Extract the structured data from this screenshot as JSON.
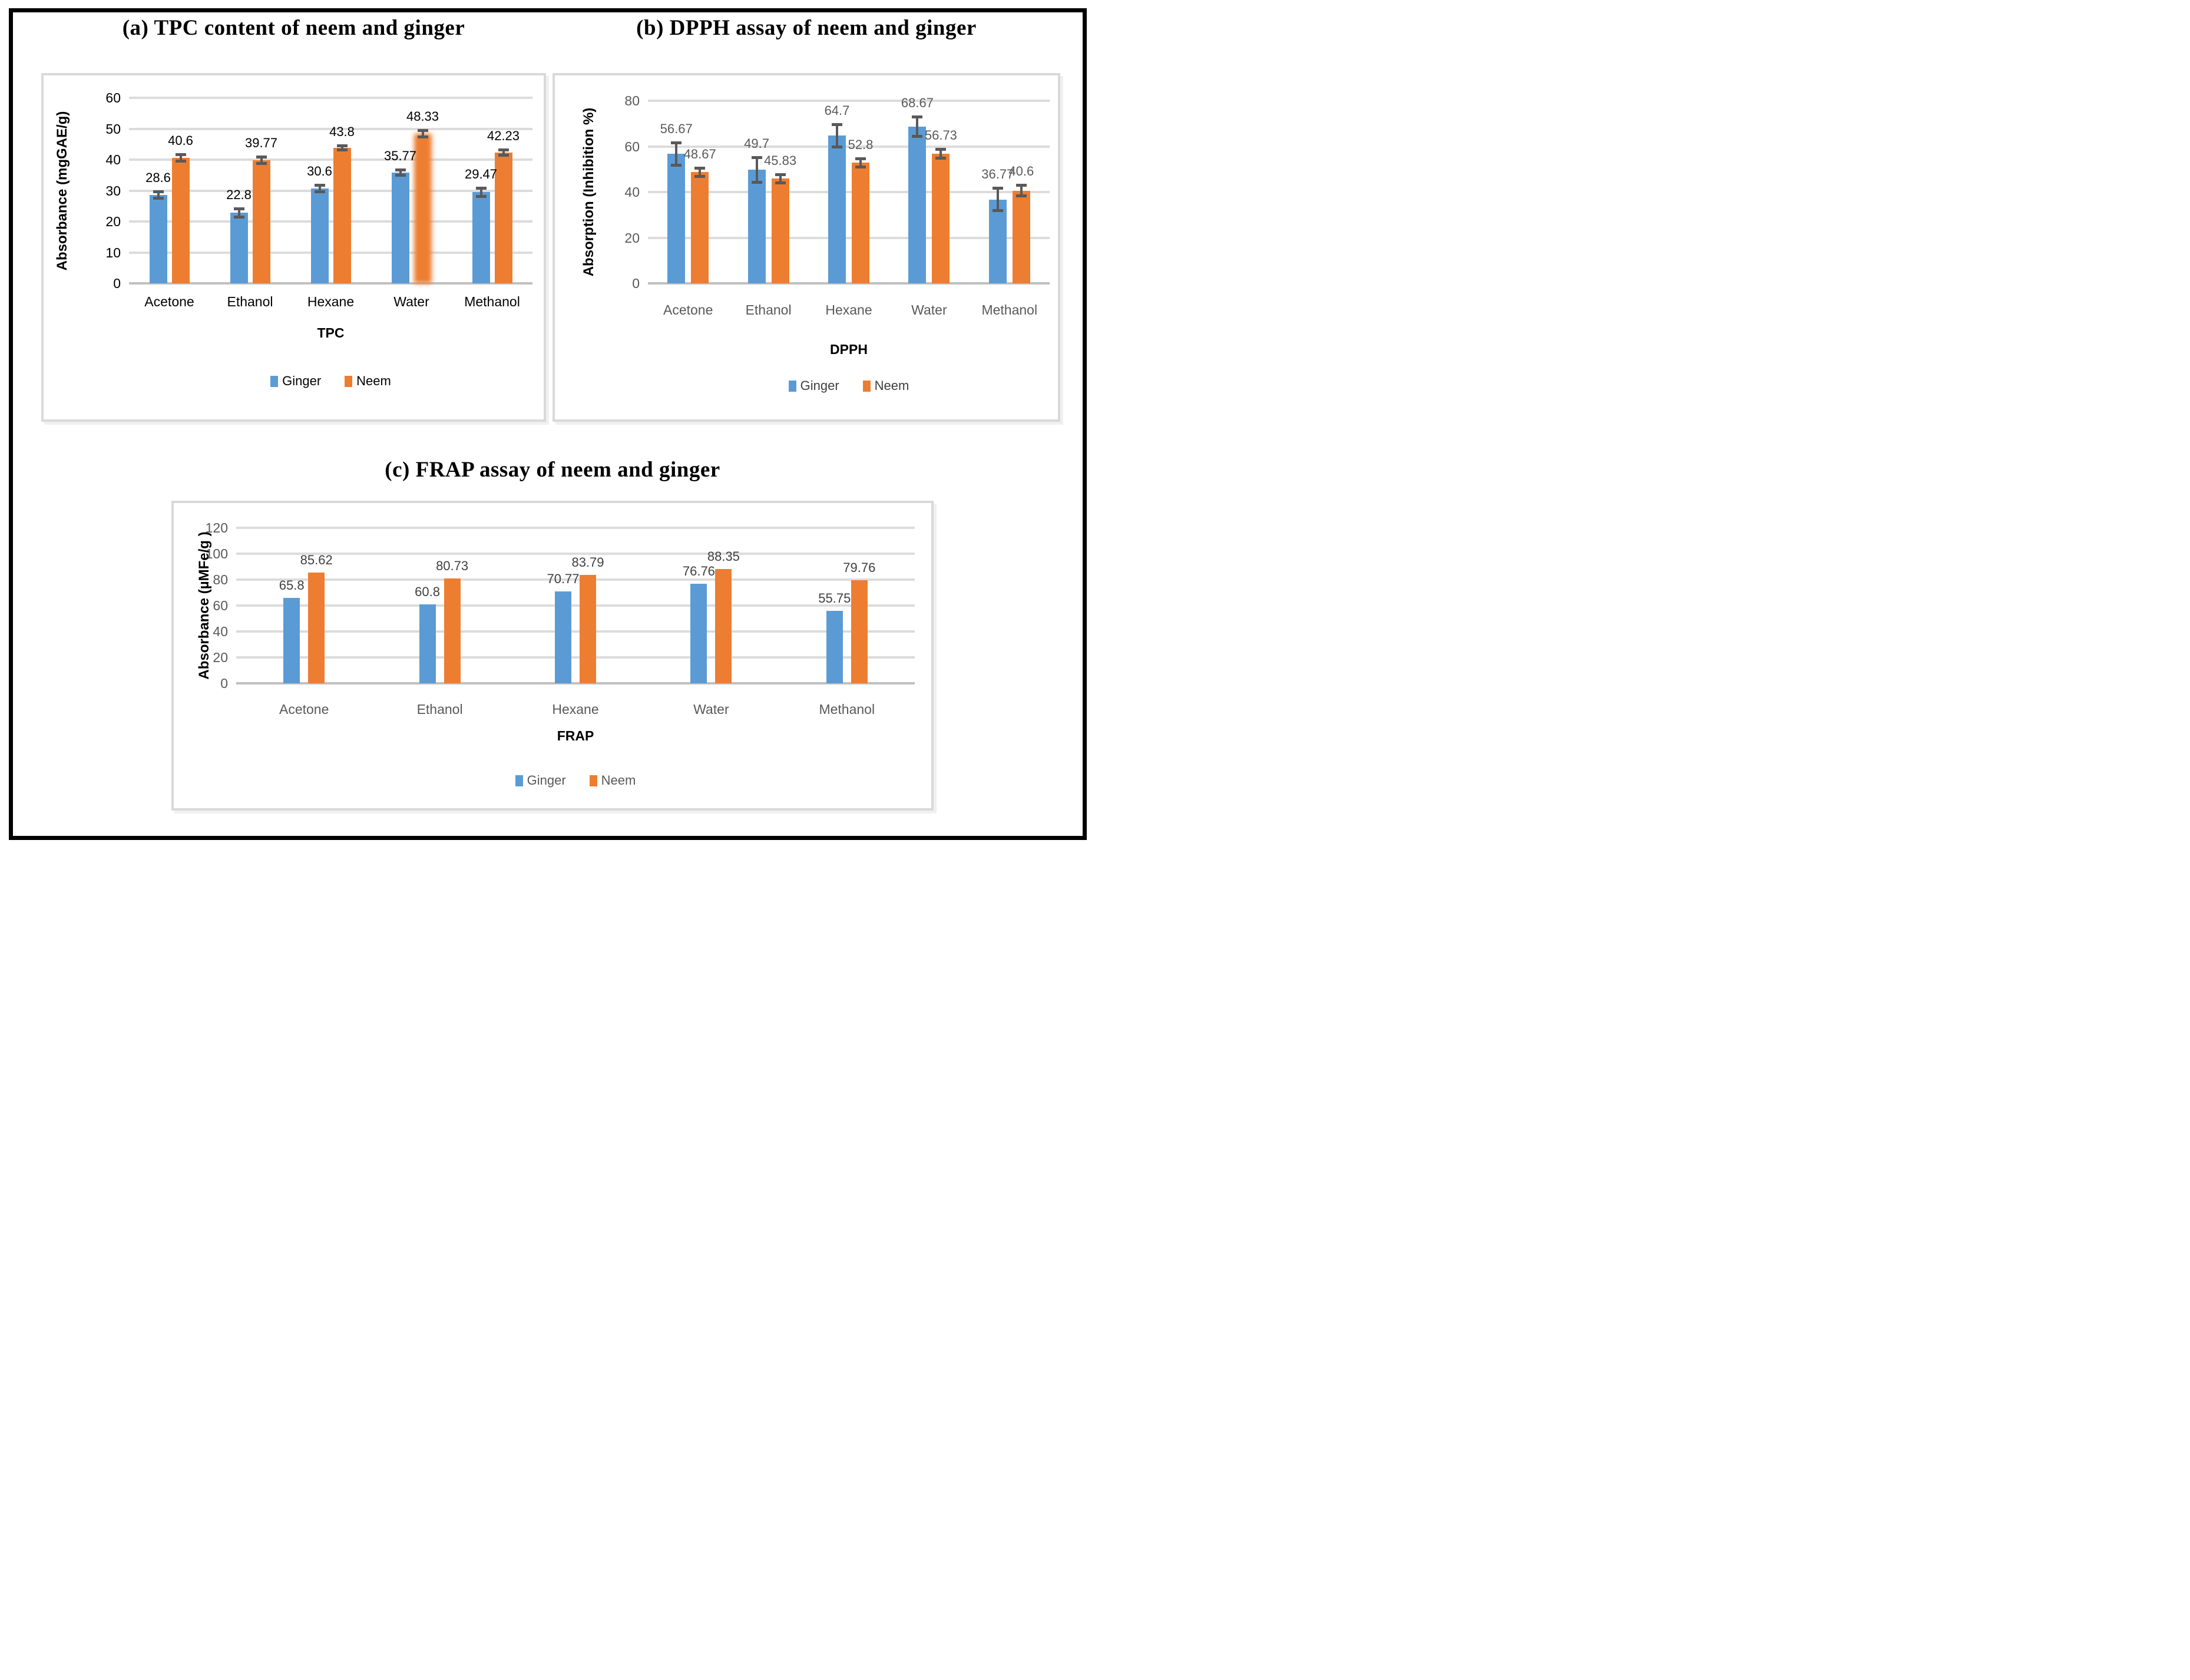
{
  "figure": {
    "border_color": "#000000",
    "background": "#ffffff"
  },
  "palette": {
    "ginger": "#5B9BD5",
    "neem": "#ED7D31",
    "error_bar": "#595959",
    "gridline": "#DCDCDC",
    "axis_line": "#C0C0C0",
    "panel_border": "#D9D9D9",
    "title_color": "#000000"
  },
  "chart_data": [
    {
      "id": "tpc",
      "type": "bar",
      "title": "(a) TPC content of neem and ginger",
      "xlabel": "TPC",
      "ylabel": "Absorbance (mgGAE/g)",
      "ylim": [
        0,
        60
      ],
      "yticks": [
        0,
        10,
        20,
        30,
        40,
        50,
        60
      ],
      "grid": true,
      "legend_position": "bottom",
      "categories": [
        "Acetone",
        "Ethanol",
        "Hexane",
        "Water",
        "Methanol"
      ],
      "series": [
        {
          "name": "Ginger",
          "color": "#5B9BD5",
          "values": [
            28.6,
            22.8,
            30.6,
            35.77,
            29.47
          ],
          "labels": [
            "28.6",
            "22.8",
            "30.6",
            "35.77",
            "29.47"
          ],
          "errors": [
            1.5,
            1.8,
            1.5,
            1.3,
            1.8
          ]
        },
        {
          "name": "Neem",
          "color": "#ED7D31",
          "values": [
            40.6,
            39.77,
            43.8,
            48.33,
            42.23
          ],
          "labels": [
            "40.6",
            "39.77",
            "43.8",
            "48.33",
            "42.23"
          ],
          "errors": [
            1.5,
            1.5,
            1.2,
            1.5,
            1.3
          ]
        }
      ],
      "blurred_bar": {
        "category": "Water",
        "series": "Neem"
      },
      "text_colors": {
        "tick": "#000000",
        "category": "#000000",
        "datalabel": "#000000",
        "legend": "#000000"
      }
    },
    {
      "id": "dpph",
      "type": "bar",
      "title": "(b) DPPH assay of neem and ginger",
      "xlabel": "DPPH",
      "ylabel": "Absorption (Inhibition %)",
      "ylim": [
        0,
        80
      ],
      "yticks": [
        0,
        20,
        40,
        60,
        80
      ],
      "grid": true,
      "legend_position": "bottom",
      "categories": [
        "Acetone",
        "Ethanol",
        "Hexane",
        "Water",
        "Methanol"
      ],
      "series": [
        {
          "name": "Ginger",
          "color": "#5B9BD5",
          "values": [
            56.67,
            49.7,
            64.7,
            68.67,
            36.77
          ],
          "labels": [
            "56.67",
            "49.7",
            "64.7",
            "68.67",
            "36.77"
          ],
          "errors": [
            5.5,
            6,
            5.5,
            5,
            5.5
          ]
        },
        {
          "name": "Neem",
          "color": "#ED7D31",
          "values": [
            48.67,
            45.83,
            52.8,
            56.73,
            40.6
          ],
          "labels": [
            "48.67",
            "45.83",
            "52.8",
            "56.73",
            "40.6"
          ],
          "errors": [
            2.5,
            2.5,
            2.5,
            2.5,
            3
          ]
        }
      ],
      "text_colors": {
        "tick": "#595959",
        "category": "#595959",
        "datalabel": "#595959",
        "legend": "#404040"
      }
    },
    {
      "id": "frap",
      "type": "bar",
      "title": "(c) FRAP assay of neem and ginger",
      "xlabel": "FRAP",
      "ylabel": "Absorbance (µMFe/g )",
      "ylim": [
        0,
        120
      ],
      "yticks": [
        0,
        20,
        40,
        60,
        80,
        100,
        120
      ],
      "grid": true,
      "legend_position": "bottom",
      "categories": [
        "Acetone",
        "Ethanol",
        "Hexane",
        "Water",
        "Methanol"
      ],
      "series": [
        {
          "name": "Ginger",
          "color": "#5B9BD5",
          "values": [
            65.8,
            60.8,
            70.77,
            76.76,
            55.75
          ],
          "labels": [
            "65.8",
            "60.8",
            "70.77",
            "76.76",
            "55.75"
          ]
        },
        {
          "name": "Neem",
          "color": "#ED7D31",
          "values": [
            85.62,
            80.73,
            83.79,
            88.35,
            79.76
          ],
          "labels": [
            "85.62",
            "80.73",
            "83.79",
            "88.35",
            "79.76"
          ]
        }
      ],
      "text_colors": {
        "tick": "#595959",
        "category": "#595959",
        "datalabel": "#3f3f3f",
        "legend": "#595959"
      }
    }
  ]
}
